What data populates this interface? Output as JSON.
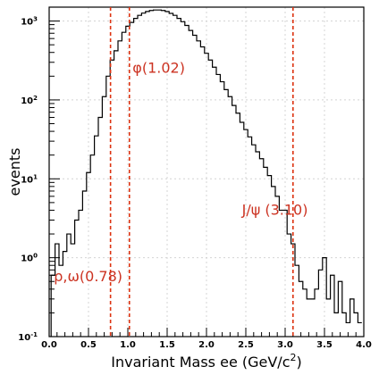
{
  "chart_data": {
    "type": "line",
    "title": "",
    "xlabel_main": "Invariant Mass ee (GeV/c",
    "xlabel_sup": "2",
    "xlabel_end": ")",
    "ylabel": "events",
    "xlim": [
      0.0,
      4.0
    ],
    "ylim": [
      0.1,
      1500
    ],
    "yscale": "log",
    "grid": true,
    "x_ticks": [
      "0.0",
      "0.5",
      "1.0",
      "1.5",
      "2.0",
      "2.5",
      "3.0",
      "3.5",
      "4.0"
    ],
    "y_ticks": [
      {
        "value": 0.1,
        "base": "10",
        "exp": "-1"
      },
      {
        "value": 1,
        "base": "10",
        "exp": "0"
      },
      {
        "value": 10,
        "base": "10",
        "exp": "1"
      },
      {
        "value": 100,
        "base": "10",
        "exp": "2"
      },
      {
        "value": 1000,
        "base": "10",
        "exp": "3"
      }
    ],
    "series": [
      {
        "color": "#000000",
        "x": [
          0.05,
          0.1,
          0.15,
          0.2,
          0.25,
          0.3,
          0.35,
          0.4,
          0.45,
          0.5,
          0.55,
          0.6,
          0.65,
          0.7,
          0.75,
          0.8,
          0.85,
          0.9,
          0.95,
          1.0,
          1.05,
          1.1,
          1.15,
          1.2,
          1.25,
          1.3,
          1.35,
          1.4,
          1.45,
          1.5,
          1.55,
          1.6,
          1.65,
          1.7,
          1.75,
          1.8,
          1.85,
          1.9,
          1.95,
          2.0,
          2.05,
          2.1,
          2.15,
          2.2,
          2.25,
          2.3,
          2.35,
          2.4,
          2.45,
          2.5,
          2.55,
          2.6,
          2.65,
          2.7,
          2.75,
          2.8,
          2.85,
          2.9,
          2.95,
          3.0,
          3.05,
          3.1,
          3.15,
          3.2,
          3.25,
          3.3,
          3.35,
          3.4,
          3.45,
          3.5,
          3.55,
          3.6,
          3.65,
          3.7,
          3.75,
          3.8,
          3.85,
          3.9,
          3.95
        ],
        "y": [
          0.6,
          1.5,
          0.8,
          1.2,
          2,
          1.5,
          3,
          4,
          7,
          12,
          20,
          35,
          60,
          110,
          200,
          320,
          420,
          560,
          720,
          860,
          960,
          1080,
          1180,
          1260,
          1320,
          1360,
          1380,
          1380,
          1360,
          1320,
          1250,
          1180,
          1080,
          980,
          880,
          760,
          660,
          560,
          470,
          390,
          320,
          260,
          210,
          170,
          135,
          110,
          85,
          68,
          52,
          42,
          34,
          27,
          22,
          18,
          14,
          11,
          8,
          6,
          4,
          4,
          2,
          1.5,
          0.8,
          0.5,
          0.4,
          0.3,
          0.3,
          0.4,
          0.7,
          1,
          0.3,
          0.6,
          0.2,
          0.5,
          0.2,
          0.15,
          0.3,
          0.2,
          0.15
        ]
      }
    ],
    "markers": [
      {
        "x": 0.78,
        "label": "ρ,ω(0.78)",
        "label_x": 0.06,
        "label_y": 0.5
      },
      {
        "x": 1.02,
        "label": "φ(1.02)",
        "label_x": 1.06,
        "label_y": 220
      },
      {
        "x": 3.1,
        "label": "J/ψ (3.10)",
        "label_x": 2.45,
        "label_y": 3.5
      }
    ],
    "marker_color": "#dd3311"
  }
}
